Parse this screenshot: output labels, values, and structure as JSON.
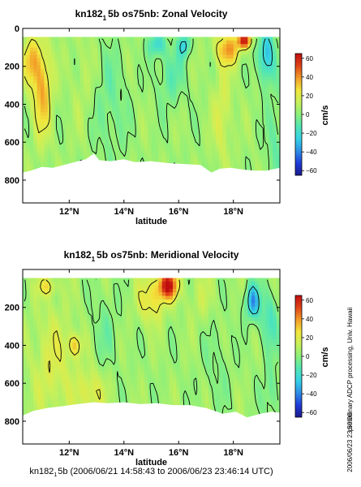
{
  "colors": {
    "colormap": [
      "#1a1a8c",
      "#1f3cd9",
      "#2f8fe6",
      "#35d2e6",
      "#52e6b4",
      "#8cf07a",
      "#c8f05a",
      "#f2e63c",
      "#f29c28",
      "#e04418",
      "#c00e0e"
    ]
  },
  "chart_data": [
    {
      "type": "heatmap",
      "title": "kn182_1 5b os75nb: Zonal Velocity",
      "title_parts": {
        "main": "kn182",
        "sub": "1",
        "rest": "5b os75nb: Zonal Velocity"
      },
      "xlabel": "latitude",
      "ylabel": "",
      "x_ticks": [
        "12°N",
        "14°N",
        "16°N",
        "18°N"
      ],
      "x_tick_values": [
        12,
        14,
        16,
        18
      ],
      "xlim": [
        10.3,
        19.7
      ],
      "y_ticks": [
        "0",
        "200",
        "400",
        "600",
        "800"
      ],
      "y_tick_values": [
        0,
        200,
        400,
        600,
        800
      ],
      "ylim": [
        0,
        920
      ],
      "y_inverted": true,
      "colorbar": {
        "label": "cm/s",
        "ticks": [
          "60",
          "40",
          "20",
          "0",
          "−20",
          "−40",
          "−60"
        ],
        "tick_values": [
          60,
          40,
          20,
          0,
          -20,
          -40,
          -60
        ],
        "range": [
          -65,
          65
        ]
      },
      "depth_top": 45,
      "bottom_depth_profile": [
        [
          10.3,
          760
        ],
        [
          10.6,
          750
        ],
        [
          11.0,
          730
        ],
        [
          11.4,
          735
        ],
        [
          11.8,
          720
        ],
        [
          12.2,
          705
        ],
        [
          12.6,
          690
        ],
        [
          12.9,
          660
        ],
        [
          13.1,
          695
        ],
        [
          13.5,
          700
        ],
        [
          14.0,
          690
        ],
        [
          14.4,
          705
        ],
        [
          15.0,
          700
        ],
        [
          15.6,
          710
        ],
        [
          16.2,
          715
        ],
        [
          16.8,
          720
        ],
        [
          17.2,
          760
        ],
        [
          17.5,
          740
        ],
        [
          17.9,
          735
        ],
        [
          18.4,
          745
        ],
        [
          18.8,
          750
        ],
        [
          19.2,
          750
        ],
        [
          19.7,
          735
        ]
      ],
      "features": [
        {
          "lat": 11.0,
          "depth": 320,
          "sx": 0.35,
          "sy": 240,
          "v": 32
        },
        {
          "lat": 10.6,
          "depth": 170,
          "sx": 0.3,
          "sy": 120,
          "v": 24
        },
        {
          "lat": 12.5,
          "depth": 260,
          "sx": 0.4,
          "sy": 260,
          "v": 6
        },
        {
          "lat": 13.5,
          "depth": 400,
          "sx": 0.6,
          "sy": 320,
          "v": -10
        },
        {
          "lat": 15.7,
          "depth": 250,
          "sx": 0.5,
          "sy": 160,
          "v": -14
        },
        {
          "lat": 15.2,
          "depth": 85,
          "sx": 0.3,
          "sy": 60,
          "v": -25
        },
        {
          "lat": 16.2,
          "depth": 90,
          "sx": 0.2,
          "sy": 60,
          "v": -30
        },
        {
          "lat": 17.8,
          "depth": 110,
          "sx": 0.45,
          "sy": 80,
          "v": 32
        },
        {
          "lat": 18.4,
          "depth": 65,
          "sx": 0.25,
          "sy": 40,
          "v": 56
        },
        {
          "lat": 19.2,
          "depth": 140,
          "sx": 0.3,
          "sy": 140,
          "v": -35
        },
        {
          "lat": 17.6,
          "depth": 450,
          "sx": 0.35,
          "sy": 260,
          "v": 14
        },
        {
          "lat": 19.5,
          "depth": 600,
          "sx": 0.3,
          "sy": 260,
          "v": -12
        }
      ],
      "base_value": 4
    },
    {
      "type": "heatmap",
      "title": "kn182_1 5b os75nb: Meridional Velocity",
      "title_parts": {
        "main": "kn182",
        "sub": "1",
        "rest": "5b os75nb: Meridional Velocity"
      },
      "xlabel": "latitude",
      "ylabel": "",
      "x_ticks": [
        "12°N",
        "14°N",
        "16°N",
        "18°N"
      ],
      "x_tick_values": [
        12,
        14,
        16,
        18
      ],
      "xlim": [
        10.3,
        19.7
      ],
      "y_ticks": [
        "200",
        "400",
        "600",
        "800"
      ],
      "y_tick_values": [
        200,
        400,
        600,
        800
      ],
      "ylim": [
        0,
        920
      ],
      "y_inverted": true,
      "colorbar": {
        "label": "cm/s",
        "ticks": [
          "60",
          "40",
          "20",
          "0",
          "−20",
          "−40",
          "−60"
        ],
        "tick_values": [
          60,
          40,
          20,
          0,
          -20,
          -40,
          -60
        ],
        "range": [
          -65,
          65
        ]
      },
      "depth_top": 45,
      "bottom_depth_profile": [
        [
          10.3,
          770
        ],
        [
          10.7,
          745
        ],
        [
          11.2,
          730
        ],
        [
          11.8,
          720
        ],
        [
          12.3,
          710
        ],
        [
          12.9,
          700
        ],
        [
          13.4,
          705
        ],
        [
          14.0,
          700
        ],
        [
          14.6,
          710
        ],
        [
          15.2,
          705
        ],
        [
          15.8,
          715
        ],
        [
          16.4,
          715
        ],
        [
          17.0,
          730
        ],
        [
          17.6,
          760
        ],
        [
          18.1,
          750
        ],
        [
          18.5,
          780
        ],
        [
          19.0,
          760
        ],
        [
          19.4,
          750
        ],
        [
          19.7,
          755
        ]
      ],
      "features": [
        {
          "lat": 11.4,
          "depth": 500,
          "sx": 0.8,
          "sy": 300,
          "v": 14
        },
        {
          "lat": 12.2,
          "depth": 400,
          "sx": 0.25,
          "sy": 60,
          "v": 24
        },
        {
          "lat": 12.8,
          "depth": 650,
          "sx": 0.5,
          "sy": 120,
          "v": 18
        },
        {
          "lat": 15.6,
          "depth": 85,
          "sx": 0.35,
          "sy": 70,
          "v": 60
        },
        {
          "lat": 15.0,
          "depth": 160,
          "sx": 0.5,
          "sy": 120,
          "v": 22
        },
        {
          "lat": 11.2,
          "depth": 90,
          "sx": 0.35,
          "sy": 50,
          "v": 20
        },
        {
          "lat": 13.3,
          "depth": 320,
          "sx": 0.5,
          "sy": 200,
          "v": -8
        },
        {
          "lat": 16.8,
          "depth": 150,
          "sx": 0.5,
          "sy": 140,
          "v": 8
        },
        {
          "lat": 18.7,
          "depth": 170,
          "sx": 0.25,
          "sy": 90,
          "v": -40
        },
        {
          "lat": 19.3,
          "depth": 260,
          "sx": 0.35,
          "sy": 160,
          "v": -18
        },
        {
          "lat": 17.4,
          "depth": 500,
          "sx": 0.5,
          "sy": 250,
          "v": -6
        },
        {
          "lat": 19.4,
          "depth": 650,
          "sx": 0.3,
          "sy": 160,
          "v": -12
        }
      ],
      "base_value": 4
    }
  ],
  "footer": {
    "main": "kn182",
    "sub": "1",
    "rest": "5b (2006/06/21 14:58:43 to 2006/06/23 23:46:14 UTC)"
  },
  "side_labels": {
    "processing": "preliminary ADCP processing,  Univ. Hawaii",
    "timestamp": "2006/06/23 23:50:00"
  }
}
